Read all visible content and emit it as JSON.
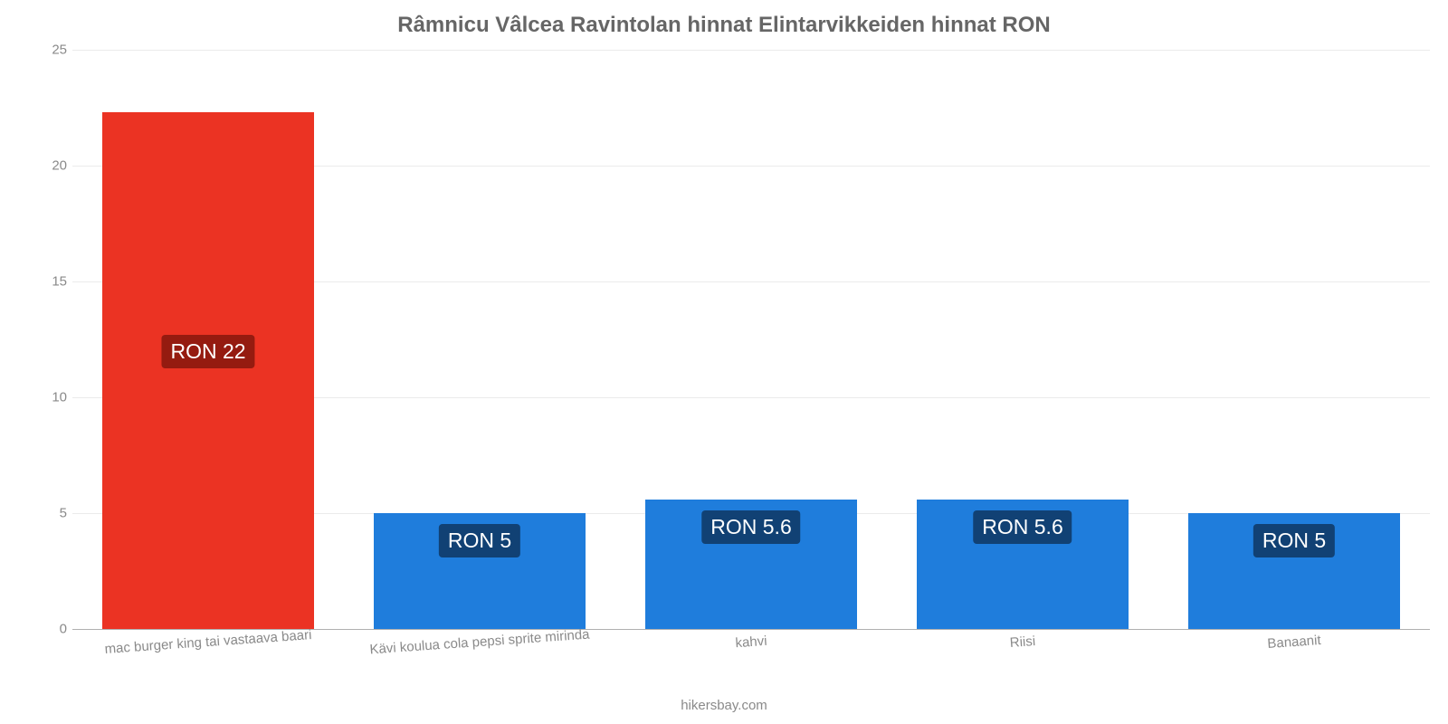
{
  "chart": {
    "type": "bar",
    "title": "Râmnicu Vâlcea Ravintolan hinnat Elintarvikkeiden hinnat RON",
    "title_color": "#666666",
    "title_fontsize": 24,
    "title_fontweight": "bold",
    "background_color": "#ffffff",
    "grid_color": "#ebebeb",
    "baseline_color": "#b0b0b0",
    "axis_font_color": "#8a8a8a",
    "axis_fontsize": 15,
    "xtick_rotation_deg": -4,
    "ylim": [
      0,
      25
    ],
    "ytick_step": 5,
    "yticks": [
      0,
      5,
      10,
      15,
      20,
      25
    ],
    "bar_width_ratio": 0.78,
    "categories": [
      "mac burger king tai vastaava baari",
      "Kävi koulua cola pepsi sprite mirinda",
      "kahvi",
      "Riisi",
      "Banaanit"
    ],
    "values": [
      22.3,
      5.0,
      5.6,
      5.6,
      5.0
    ],
    "value_labels": [
      "RON 22",
      "RON 5",
      "RON 5.6",
      "RON 5.6",
      "RON 5"
    ],
    "bar_colors": [
      "#eb3323",
      "#1f7ddc",
      "#1f7ddc",
      "#1f7ddc",
      "#1f7ddc"
    ],
    "badge_colors": [
      "#951b10",
      "#114174",
      "#114174",
      "#114174",
      "#114174"
    ],
    "badge_fontsize": 23,
    "badge_text_color": "#ffffff",
    "footer": "hikersbay.com"
  }
}
